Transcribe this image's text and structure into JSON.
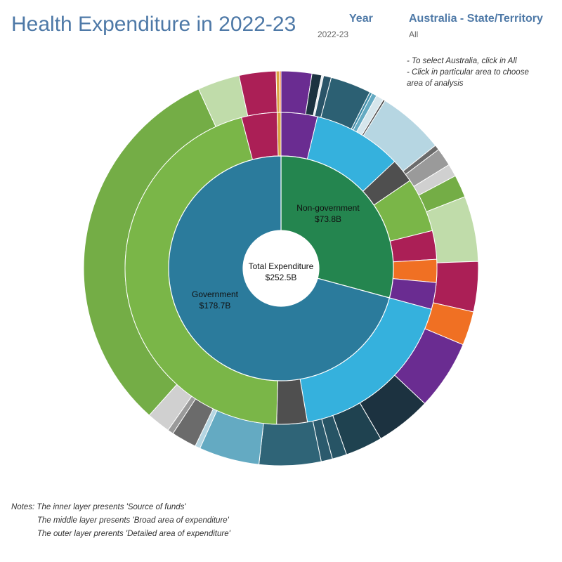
{
  "page": {
    "title": "Health Expenditure in 2022-23",
    "filters": {
      "year": {
        "label": "Year",
        "value": "2022-23"
      },
      "state": {
        "label": "Australia - State/Territory",
        "value": "All"
      }
    },
    "instructions": [
      "- To select Australia, click in All",
      "- Click in particular area to choose",
      "area of analysis"
    ],
    "notes": [
      "Notes: The inner layer presents  'Source of funds'",
      "The middle layer presents  'Broad area of expenditure'",
      "The outer layer prerents  'Detailed area of expenditure'"
    ]
  },
  "chart_data": {
    "type": "sunburst",
    "center": {
      "label": "Total Expenditure",
      "value": "$252.5B"
    },
    "units": "$B",
    "inner": [
      {
        "id": "nongov",
        "name": "Non-government",
        "value_label": "$73.8B",
        "value": 73.8,
        "color": "#24854f"
      },
      {
        "id": "gov",
        "name": "Government",
        "value_label": "$178.7B",
        "value": 178.7,
        "color": "#2b7b9c"
      }
    ],
    "middle": [
      {
        "parent": "nongov",
        "value": 9.5,
        "color": "#6a2c91"
      },
      {
        "parent": "nongov",
        "value": 23.3,
        "color": "#35b1dd"
      },
      {
        "parent": "nongov",
        "value": 6.3,
        "color": "#4f4f4f"
      },
      {
        "parent": "nongov",
        "value": 14.2,
        "color": "#7ab648"
      },
      {
        "parent": "nongov",
        "value": 7.5,
        "color": "#ab1f56"
      },
      {
        "parent": "nongov",
        "value": 6.0,
        "color": "#f07023"
      },
      {
        "parent": "nongov",
        "value": 7.0,
        "color": "#6a2c91"
      },
      {
        "parent": "gov",
        "value": 45.6,
        "color": "#35b1dd"
      },
      {
        "parent": "gov",
        "value": 8.0,
        "color": "#4f4f4f"
      },
      {
        "parent": "gov",
        "value": 114.8,
        "color": "#7ab648"
      },
      {
        "parent": "gov",
        "value": 9.3,
        "color": "#ab1f56"
      },
      {
        "parent": "gov",
        "value": 1.0,
        "color": "#d9a441"
      }
    ],
    "outer": [
      {
        "value": 9.5,
        "color": "#6a2c91"
      },
      {
        "value": 3.0,
        "color": "#1c3240"
      },
      {
        "value": 0.6,
        "color": "#e8ecef"
      },
      {
        "value": 2.4,
        "color": "#2a5468"
      },
      {
        "value": 12.6,
        "color": "#2c6073"
      },
      {
        "value": 0.8,
        "color": "#3d8aa5"
      },
      {
        "value": 1.5,
        "color": "#64aac2"
      },
      {
        "value": 2.4,
        "color": "#d6e6ec"
      },
      {
        "value": 0.6,
        "color": "#4f4f4f"
      },
      {
        "value": 20.6,
        "color": "#b6d6e2"
      },
      {
        "value": 1.6,
        "color": "#6b6b6b"
      },
      {
        "value": 5.6,
        "color": "#9a9a9a"
      },
      {
        "value": 3.9,
        "color": "#d0d0d0"
      },
      {
        "value": 7.0,
        "color": "#74ad46"
      },
      {
        "value": 20.2,
        "color": "#c0dcaa"
      },
      {
        "value": 15.5,
        "color": "#ab1f56"
      },
      {
        "value": 10.5,
        "color": "#f07023"
      },
      {
        "value": 21.5,
        "color": "#6a2c91"
      },
      {
        "value": 17.2,
        "color": "#1c3240"
      },
      {
        "value": 11.5,
        "color": "#1f4250"
      },
      {
        "value": 4.5,
        "color": "#275465"
      },
      {
        "value": 3.5,
        "color": "#2b5a6d"
      },
      {
        "value": 19.1,
        "color": "#2f6477"
      },
      {
        "value": 18.7,
        "color": "#64aac2"
      },
      {
        "value": 1.6,
        "color": "#b6d6e2"
      },
      {
        "value": 7.8,
        "color": "#6b6b6b"
      },
      {
        "value": 1.8,
        "color": "#9a9a9a"
      },
      {
        "value": 7.3,
        "color": "#d0d0d0"
      },
      {
        "value": 119.0,
        "color": "#74ad46"
      },
      {
        "value": 13.0,
        "color": "#c0dcaa"
      },
      {
        "value": 11.4,
        "color": "#ab1f56"
      },
      {
        "value": 1.0,
        "color": "#d9a441"
      },
      {
        "value": 0.5,
        "color": "#f07023"
      }
    ]
  }
}
